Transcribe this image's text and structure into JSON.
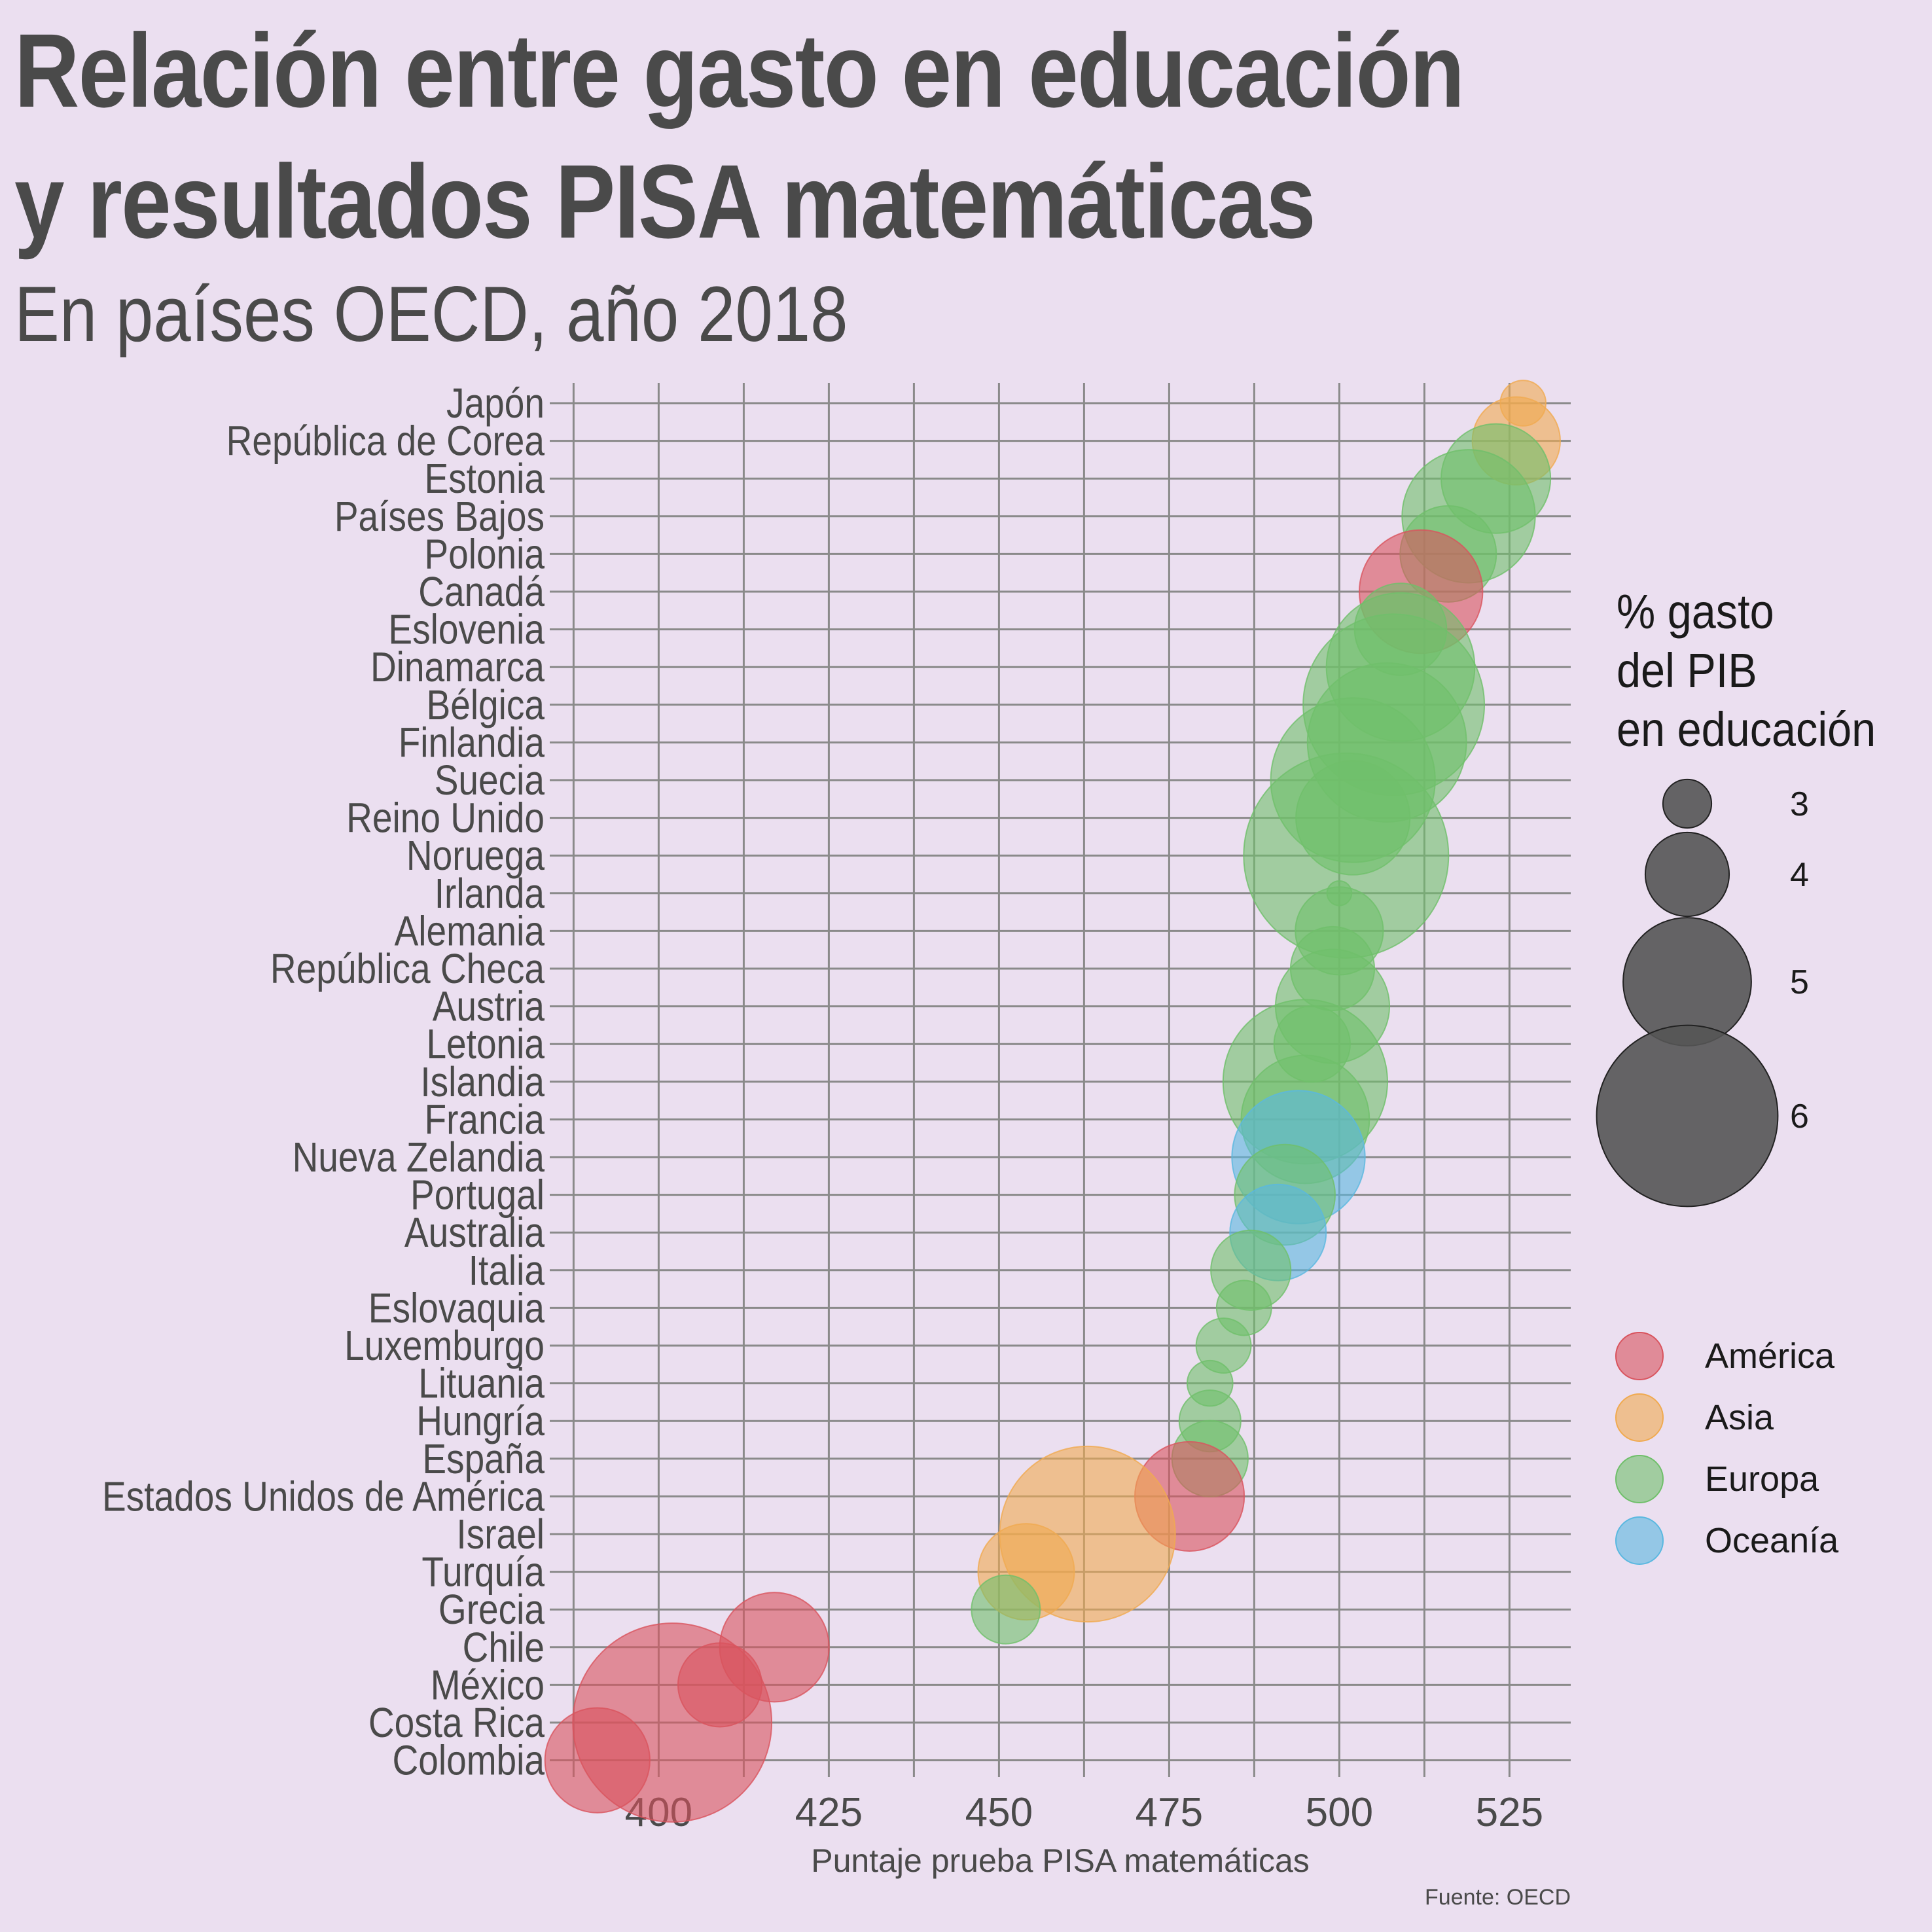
{
  "title_line1": "Relación entre gasto en educación",
  "title_line2": "y resultados PISA matemáticas",
  "subtitle": "En países OECD, año 2018",
  "source": "Fuente: OECD",
  "chart_data": {
    "type": "scatter",
    "xlabel": "Puntaje prueba PISA matemáticas",
    "xlim": [
      384,
      534
    ],
    "xticks": [
      400,
      425,
      450,
      475,
      500,
      525
    ],
    "size_legend": {
      "title": "% gasto\ndel PIB\nen educación",
      "values": [
        3,
        4,
        5,
        6
      ]
    },
    "color_legend": [
      {
        "name": "América",
        "color": "#d9545e"
      },
      {
        "name": "Asia",
        "color": "#f0aa50"
      },
      {
        "name": "Europa",
        "color": "#6fbf6a"
      },
      {
        "name": "Oceanía",
        "color": "#5ab8e0"
      }
    ],
    "points": [
      {
        "country": "Japón",
        "score": 527,
        "spending": 2.9,
        "region": "Asia"
      },
      {
        "country": "República de Corea",
        "score": 526,
        "spending": 4.1,
        "region": "Asia"
      },
      {
        "country": "Estonia",
        "score": 523,
        "spending": 4.6,
        "region": "Europa"
      },
      {
        "country": "Países Bajos",
        "score": 519,
        "spending": 5.1,
        "region": "Europa"
      },
      {
        "country": "Polonia",
        "score": 516,
        "spending": 4.3,
        "region": "Europa"
      },
      {
        "country": "Canadá",
        "score": 512,
        "spending": 4.9,
        "region": "América"
      },
      {
        "country": "Eslovenia",
        "score": 509,
        "spending": 4.2,
        "region": "Europa"
      },
      {
        "country": "Dinamarca",
        "score": 509,
        "spending": 5.4,
        "region": "Europa"
      },
      {
        "country": "Bélgica",
        "score": 508,
        "spending": 6.0,
        "region": "Europa"
      },
      {
        "country": "Finlandia",
        "score": 507,
        "spending": 5.6,
        "region": "Europa"
      },
      {
        "country": "Suecia",
        "score": 502,
        "spending": 5.7,
        "region": "Europa"
      },
      {
        "country": "Reino Unido",
        "score": 502,
        "spending": 4.7,
        "region": "Europa"
      },
      {
        "country": "Noruega",
        "score": 501,
        "spending": 6.4,
        "region": "Europa"
      },
      {
        "country": "Irlanda",
        "score": 500,
        "spending": 2.1,
        "region": "Europa"
      },
      {
        "country": "Alemania",
        "score": 500,
        "spending": 4.1,
        "region": "Europa"
      },
      {
        "country": "República Checa",
        "score": 499,
        "spending": 4.0,
        "region": "Europa"
      },
      {
        "country": "Austria",
        "score": 499,
        "spending": 4.7,
        "region": "Europa"
      },
      {
        "country": "Letonia",
        "score": 496,
        "spending": 3.8,
        "region": "Europa"
      },
      {
        "country": "Islandia",
        "score": 495,
        "spending": 5.7,
        "region": "Europa"
      },
      {
        "country": "Francia",
        "score": 495,
        "spending": 5.0,
        "region": "Europa"
      },
      {
        "country": "Nueva Zelandia",
        "score": 494,
        "spending": 5.1,
        "region": "Oceanía"
      },
      {
        "country": "Portugal",
        "score": 492,
        "spending": 4.4,
        "region": "Europa"
      },
      {
        "country": "Australia",
        "score": 491,
        "spending": 4.3,
        "region": "Oceanía"
      },
      {
        "country": "Italia",
        "score": 487,
        "spending": 3.9,
        "region": "Europa"
      },
      {
        "country": "Eslovaquia",
        "score": 486,
        "spending": 3.2,
        "region": "Europa"
      },
      {
        "country": "Luxemburgo",
        "score": 483,
        "spending": 3.2,
        "region": "Europa"
      },
      {
        "country": "Lituania",
        "score": 481,
        "spending": 2.9,
        "region": "Europa"
      },
      {
        "country": "Hungría",
        "score": 481,
        "spending": 3.4,
        "region": "Europa"
      },
      {
        "country": "España",
        "score": 481,
        "spending": 3.8,
        "region": "Europa"
      },
      {
        "country": "Estados Unidos de América",
        "score": 478,
        "spending": 4.6,
        "region": "América"
      },
      {
        "country": "Israel",
        "score": 463,
        "spending": 5.9,
        "region": "Asia"
      },
      {
        "country": "Turquía",
        "score": 454,
        "spending": 4.3,
        "region": "Asia"
      },
      {
        "country": "Grecia",
        "score": 451,
        "spending": 3.6,
        "region": "Europa"
      },
      {
        "country": "Chile",
        "score": 417,
        "spending": 4.6,
        "region": "América"
      },
      {
        "country": "México",
        "score": 409,
        "spending": 4.0,
        "region": "América"
      },
      {
        "country": "Costa Rica",
        "score": 402,
        "spending": 6.3,
        "region": "América"
      },
      {
        "country": "Colombia",
        "score": 391,
        "spending": 4.5,
        "region": "América"
      }
    ]
  }
}
